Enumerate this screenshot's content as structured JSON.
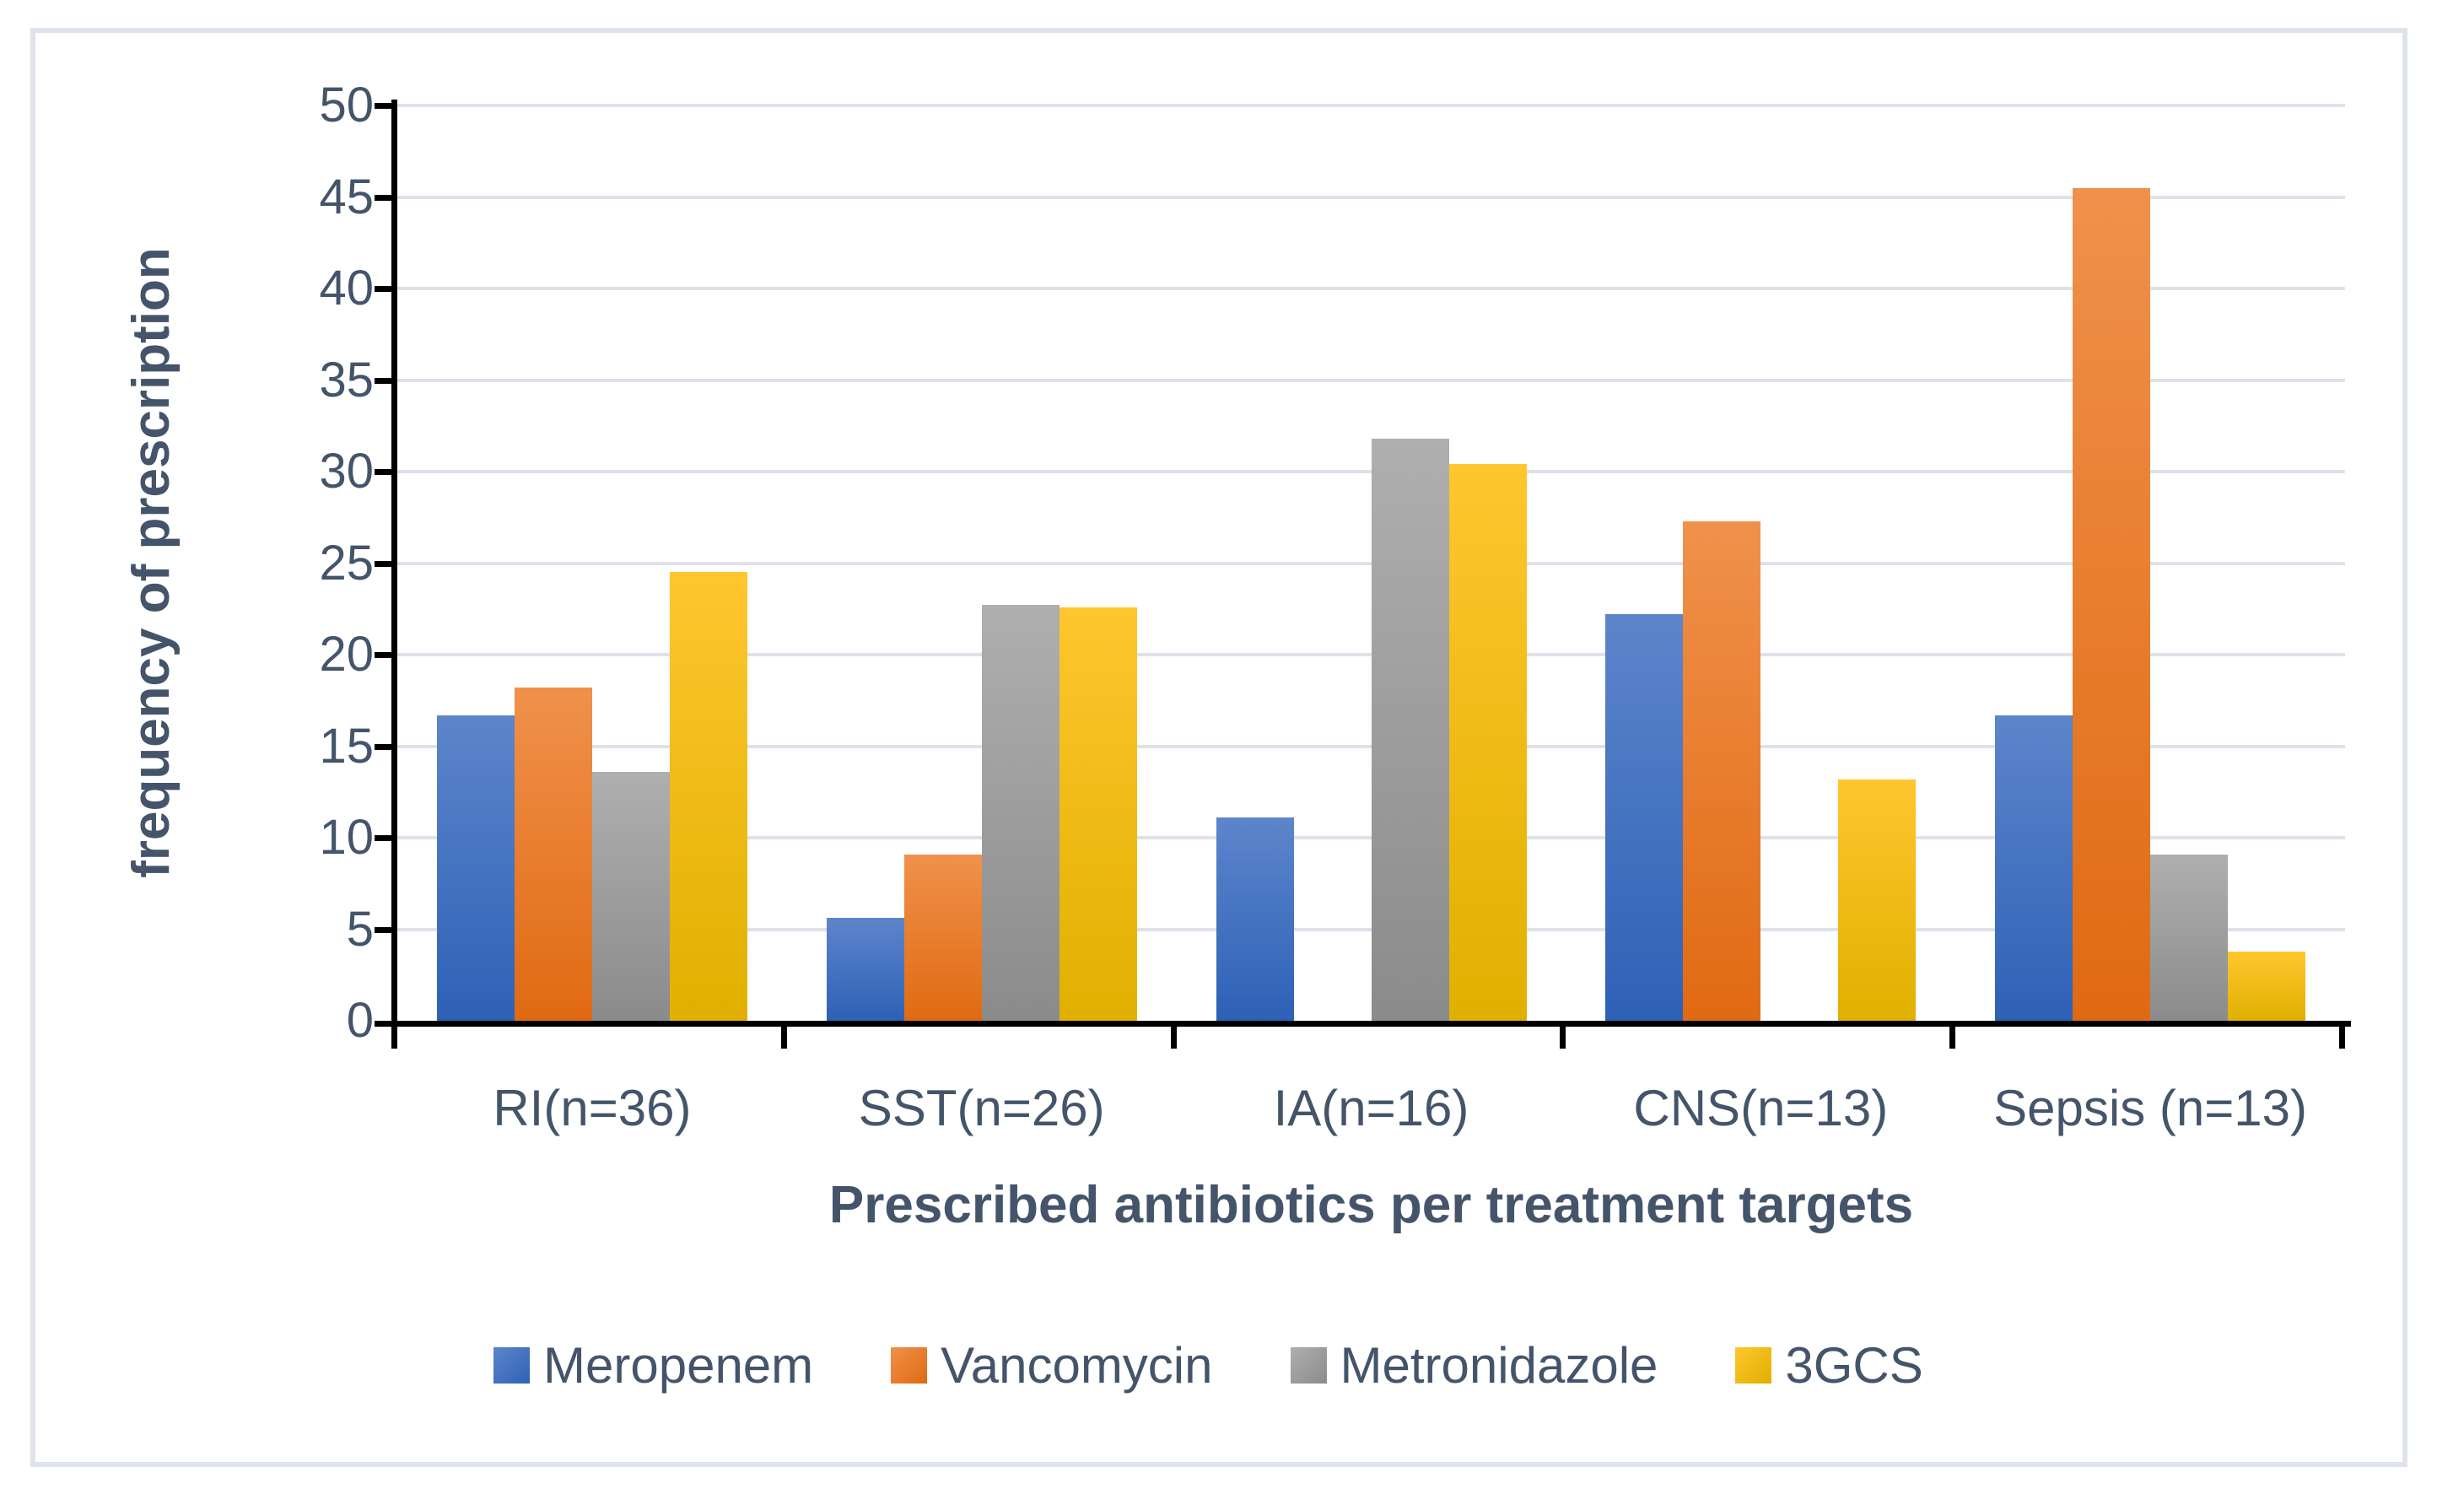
{
  "chart_data": {
    "type": "bar",
    "title": "",
    "xlabel": "Prescribed antibiotics per treatment targets",
    "ylabel": "frequency of prescription",
    "categories": [
      "RI(n=36)",
      "SST(n=26)",
      "IA(n=16)",
      "CNS(n=13)",
      "Sepsis (n=13)"
    ],
    "series": [
      {
        "name": "Meropenem",
        "color_top": "#5d85cb",
        "color_bottom": "#2d61b6",
        "values": [
          16.7,
          5.6,
          11.1,
          22.2,
          16.7
        ]
      },
      {
        "name": "Vancomycin",
        "color_top": "#f0914b",
        "color_bottom": "#e06a12",
        "values": [
          18.2,
          9.1,
          0,
          27.3,
          45.5
        ]
      },
      {
        "name": "Metronidazole",
        "color_top": "#afafaf",
        "color_bottom": "#8b8b8b",
        "values": [
          13.6,
          22.7,
          31.8,
          0,
          9.1
        ]
      },
      {
        "name": "3GCS",
        "color_top": "#ffc62e",
        "color_bottom": "#e0b000",
        "values": [
          24.5,
          22.6,
          30.4,
          13.2,
          3.8
        ]
      }
    ],
    "ylim": [
      0,
      50
    ],
    "yticks": [
      0,
      5,
      10,
      15,
      20,
      25,
      30,
      35,
      40,
      45,
      50
    ],
    "grid": true,
    "legend_position": "bottom"
  },
  "style": {
    "text_color": "#44546a",
    "gridline_color": "#dde2ea",
    "axis_color": "#000000",
    "frame_border_color": "#dee3ec",
    "background": "#ffffff"
  }
}
